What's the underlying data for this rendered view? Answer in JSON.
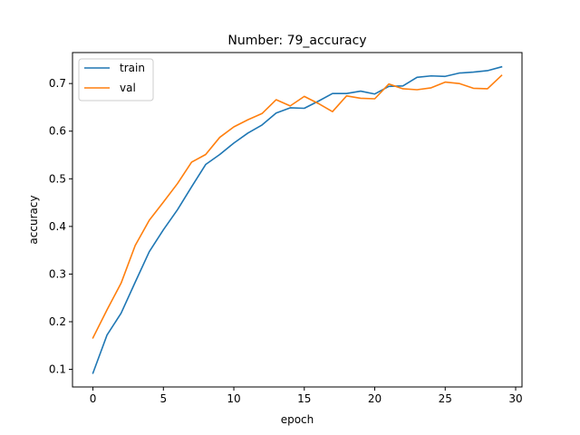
{
  "chart_data": {
    "type": "line",
    "title": "Number: 79_accuracy",
    "xlabel": "epoch",
    "ylabel": "accuracy",
    "xlim": [
      -1.45,
      30.45
    ],
    "ylim": [
      0.063,
      0.765
    ],
    "xticks": [
      0,
      5,
      10,
      15,
      20,
      25,
      30
    ],
    "yticks": [
      0.1,
      0.2,
      0.3,
      0.4,
      0.5,
      0.6,
      0.7
    ],
    "grid": false,
    "legend_position": "upper-left",
    "x": [
      0,
      1,
      2,
      3,
      4,
      5,
      6,
      7,
      8,
      9,
      10,
      11,
      12,
      13,
      14,
      15,
      16,
      17,
      18,
      19,
      20,
      21,
      22,
      23,
      24,
      25,
      26,
      27,
      28,
      29
    ],
    "series": [
      {
        "name": "train",
        "color": "#1f77b4",
        "values": [
          0.092,
          0.172,
          0.218,
          0.283,
          0.347,
          0.393,
          0.435,
          0.483,
          0.53,
          0.551,
          0.575,
          0.596,
          0.613,
          0.638,
          0.649,
          0.648,
          0.663,
          0.679,
          0.679,
          0.684,
          0.678,
          0.694,
          0.695,
          0.713,
          0.716,
          0.715,
          0.722,
          0.724,
          0.727,
          0.735
        ]
      },
      {
        "name": "val",
        "color": "#ff7f0e",
        "values": [
          0.166,
          0.225,
          0.281,
          0.36,
          0.413,
          0.451,
          0.49,
          0.535,
          0.551,
          0.587,
          0.609,
          0.624,
          0.637,
          0.666,
          0.653,
          0.673,
          0.658,
          0.641,
          0.674,
          0.669,
          0.668,
          0.699,
          0.689,
          0.687,
          0.691,
          0.703,
          0.7,
          0.69,
          0.689,
          0.717
        ]
      }
    ]
  }
}
